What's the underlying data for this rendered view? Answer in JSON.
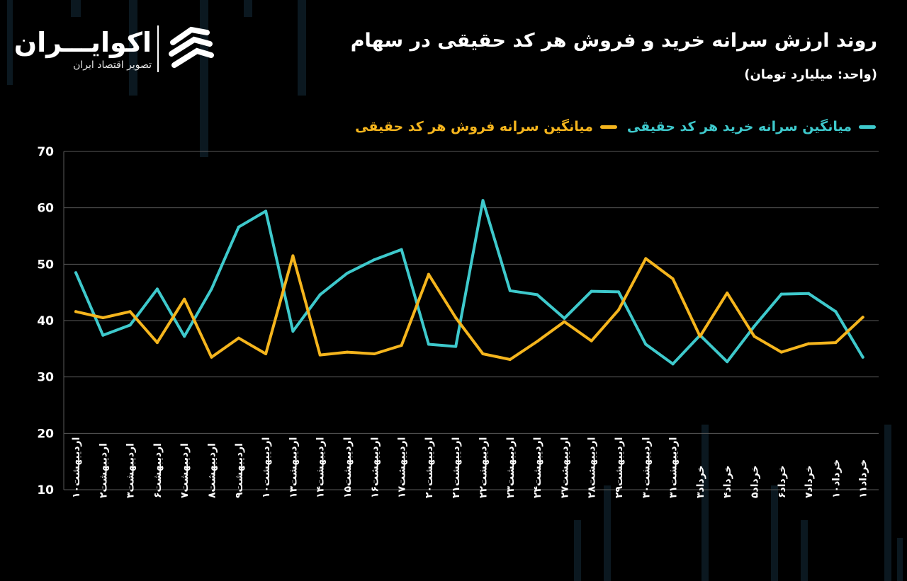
{
  "header": {
    "title": "روند ارزش سرانه خرید و فروش هر کد حقیقی در سهام",
    "unit": "(واحد: میلیارد تومان)"
  },
  "brand": {
    "name": "اکوایـــران",
    "tagline": "تصویر اقتصاد ایران",
    "logo_icon": "ekoiran-logo-icon"
  },
  "colors": {
    "background": "#000000",
    "buy": "#3ec9cc",
    "sell": "#f5b51d",
    "grid": "#5a5a5a",
    "text": "#ffffff"
  },
  "chart_data": {
    "type": "line",
    "categories": [
      "اردیبهشت۱۰",
      "اردیبهشت۲",
      "اردیبهشت۳",
      "اردیبهشت۶",
      "اردیبهشت۷",
      "اردیبهشت۸",
      "اردیبهشت۹",
      "اردیبهشت۱۰",
      "اردیبهشت۱۳",
      "اردیبهشت۱۴",
      "اردیبهشت۱۵",
      "اردیبهشت۱۶",
      "اردیبهشت۱۷",
      "اردیبهشت۲۰",
      "اردیبهشت۲۱",
      "اردیبهشت۲۲",
      "اردیبهشت۲۳",
      "اردیبهشت۲۴",
      "اردیبهشت۲۷",
      "اردیبهشت۲۸",
      "اردیبهشت۲۹",
      "اردیبهشت۳۰",
      "اردیبهشت۳۱",
      "خرداد۳",
      "خرداد۴",
      "خرداد۵",
      "خرداد۶",
      "خرداد۷",
      "خرداد۱۰",
      "خرداد۱۱"
    ],
    "series": [
      {
        "name": "میانگین سرانه خرید هر کد حقیقی",
        "color": "#3ec9cc",
        "values": [
          48.5,
          37.4,
          39.2,
          45.6,
          37.2,
          45.6,
          56.6,
          59.4,
          38.1,
          44.6,
          48.4,
          50.8,
          52.6,
          35.8,
          35.4,
          61.3,
          45.3,
          44.6,
          40.4,
          45.2,
          45.1,
          35.8,
          32.3,
          37.4,
          32.7,
          39.0,
          44.7,
          44.8,
          41.6,
          33.5
        ]
      },
      {
        "name": "میانگین سرانه فروش هر کد حقیقی",
        "color": "#f5b51d",
        "values": [
          41.6,
          40.5,
          41.6,
          36.1,
          43.8,
          33.5,
          36.9,
          34.1,
          51.5,
          33.9,
          34.4,
          34.1,
          35.6,
          48.2,
          40.5,
          34.1,
          33.1,
          36.3,
          39.8,
          36.4,
          41.9,
          51.0,
          47.4,
          37.2,
          44.9,
          37.2,
          34.4,
          35.9,
          36.1,
          40.6
        ]
      }
    ],
    "y_ticks": [
      "10",
      "20",
      "30",
      "40",
      "50",
      "60",
      "70"
    ],
    "ylim": [
      10,
      70
    ],
    "grid": true,
    "legend_position": "top-right"
  }
}
